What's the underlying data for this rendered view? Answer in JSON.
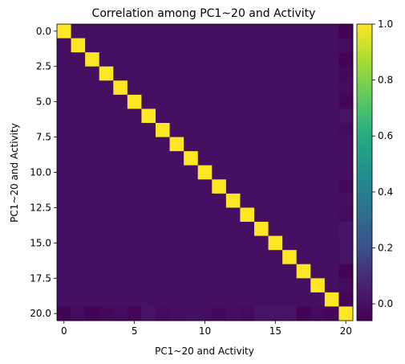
{
  "chart_data": {
    "type": "heatmap",
    "title": "Correlation among PC1~20 and Activity",
    "xlabel": "PC1~20 and Activity",
    "ylabel": "PC1~20 and Activity",
    "size": 21,
    "x_ticks": [
      0,
      5,
      10,
      15,
      20
    ],
    "x_tick_labels": [
      "0",
      "5",
      "10",
      "15",
      "20"
    ],
    "y_ticks": [
      0,
      2.5,
      5,
      7.5,
      10,
      12.5,
      15,
      17.5,
      20
    ],
    "y_tick_labels": [
      "0.0",
      "2.5",
      "5.0",
      "7.5",
      "10.0",
      "12.5",
      "15.0",
      "17.5",
      "20.0"
    ],
    "color_range": [
      -0.06,
      1.0
    ],
    "colorbar_ticks": [
      0.0,
      0.2,
      0.4,
      0.6,
      0.8,
      1.0
    ],
    "colorbar_tick_labels": [
      "0.0",
      "0.2",
      "0.4",
      "0.6",
      "0.8",
      "1.0"
    ],
    "colormap": "viridis",
    "diagonal_value": 1.0,
    "off_diagonal_value": 0.0,
    "activity_correlations": [
      -0.05,
      -0.02,
      -0.05,
      -0.03,
      -0.02,
      -0.04,
      0.01,
      -0.02,
      -0.01,
      0.0,
      -0.01,
      -0.03,
      -0.01,
      -0.02,
      0.02,
      0.01,
      0.01,
      -0.05,
      -0.02,
      -0.04
    ]
  }
}
